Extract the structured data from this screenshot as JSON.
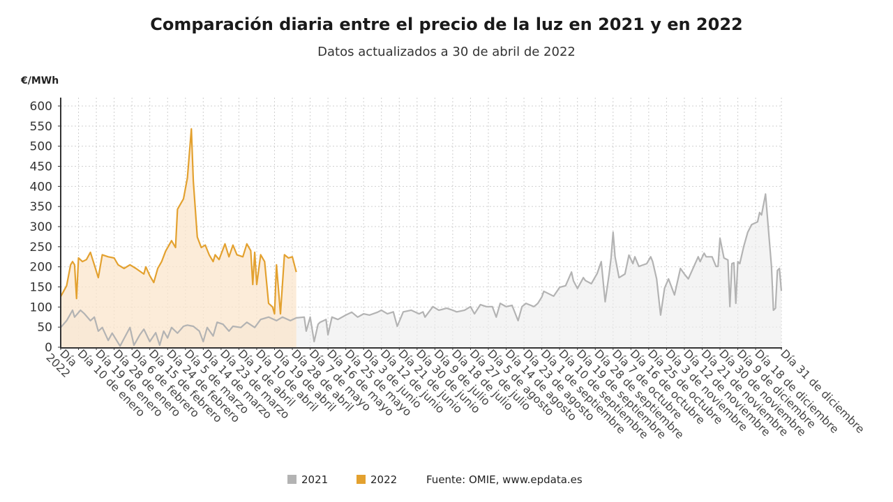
{
  "chart_data": {
    "type": "line",
    "title": "Comparación diaria entre el precio de la luz en 2021 y en 2022",
    "subtitle": "Datos actualizados a 30 de abril de 2022",
    "ylabel": "€/MWh",
    "xlabel": "",
    "ylim": [
      0,
      600
    ],
    "yticks": [
      0,
      50,
      100,
      150,
      200,
      250,
      300,
      350,
      400,
      450,
      500,
      550,
      600
    ],
    "grid": true,
    "legend_position": "bottom",
    "source": "Fuente: OMIE, www.epdata.es",
    "xticks": [
      {
        "date": "01-01",
        "label": "Día\n2022"
      },
      {
        "date": "01-10",
        "label": "Día 10 de enero"
      },
      {
        "date": "01-19",
        "label": "Día 19 de enero"
      },
      {
        "date": "01-28",
        "label": "Día 28 de enero"
      },
      {
        "date": "02-06",
        "label": "Día 6 de febrero"
      },
      {
        "date": "02-15",
        "label": "Día 15 de febrero"
      },
      {
        "date": "02-24",
        "label": "Día 24 de febrero"
      },
      {
        "date": "03-05",
        "label": "Día 5 de marzo"
      },
      {
        "date": "03-14",
        "label": "Día 14 de marzo"
      },
      {
        "date": "03-23",
        "label": "Día 23 de marzo"
      },
      {
        "date": "04-01",
        "label": "Día 1 de abril"
      },
      {
        "date": "04-10",
        "label": "Día 10 de abril"
      },
      {
        "date": "04-19",
        "label": "Día 19 de abril"
      },
      {
        "date": "04-28",
        "label": "Día 28 de abril"
      },
      {
        "date": "05-07",
        "label": "Día 7 de mayo"
      },
      {
        "date": "05-16",
        "label": "Día 16 de mayo"
      },
      {
        "date": "05-25",
        "label": "Día 25 de mayo"
      },
      {
        "date": "06-03",
        "label": "Día 3 de junio"
      },
      {
        "date": "06-12",
        "label": "Día 12 de junio"
      },
      {
        "date": "06-21",
        "label": "Día 21 de junio"
      },
      {
        "date": "06-30",
        "label": "Día 30 de junio"
      },
      {
        "date": "07-09",
        "label": "Día 9 de julio"
      },
      {
        "date": "07-18",
        "label": "Día 18 de julio"
      },
      {
        "date": "07-27",
        "label": "Día 27 de julio"
      },
      {
        "date": "08-05",
        "label": "Día 5 de agosto"
      },
      {
        "date": "08-14",
        "label": "Día 14 de agosto"
      },
      {
        "date": "08-23",
        "label": "Día 23 de agosto"
      },
      {
        "date": "09-01",
        "label": "Día 1 de septiembre"
      },
      {
        "date": "09-10",
        "label": "Día 10 de septiembre"
      },
      {
        "date": "09-19",
        "label": "Día 19 de septiembre"
      },
      {
        "date": "09-28",
        "label": "Día 28 de septiembre"
      },
      {
        "date": "10-07",
        "label": "Día 7 de octubre"
      },
      {
        "date": "10-16",
        "label": "Día 16 de octubre"
      },
      {
        "date": "10-25",
        "label": "Día 25 de octubre"
      },
      {
        "date": "11-03",
        "label": "Día 3 de noviembre"
      },
      {
        "date": "11-12",
        "label": "Día 12 de noviembre"
      },
      {
        "date": "11-21",
        "label": "Día 21 de noviembre"
      },
      {
        "date": "11-30",
        "label": "Día 30 de noviembre"
      },
      {
        "date": "12-09",
        "label": "Día 9 de diciembre"
      },
      {
        "date": "12-18",
        "label": "Día 18 de diciembre"
      },
      {
        "date": "12-31",
        "label": "Día 31 de diciembre"
      }
    ],
    "series": [
      {
        "name": "2021",
        "color": "#b3b3b3",
        "fill": "#ececec",
        "points": [
          [
            "01-01",
            49
          ],
          [
            "01-04",
            66
          ],
          [
            "01-07",
            92
          ],
          [
            "01-08",
            75
          ],
          [
            "01-11",
            92
          ],
          [
            "01-13",
            83
          ],
          [
            "01-16",
            66
          ],
          [
            "01-18",
            75
          ],
          [
            "01-20",
            40
          ],
          [
            "01-22",
            49
          ],
          [
            "01-25",
            17
          ],
          [
            "01-27",
            35
          ],
          [
            "01-31",
            3
          ],
          [
            "02-03",
            31
          ],
          [
            "02-05",
            49
          ],
          [
            "02-07",
            5
          ],
          [
            "02-10",
            31
          ],
          [
            "02-12",
            45
          ],
          [
            "02-15",
            14
          ],
          [
            "02-18",
            36
          ],
          [
            "02-20",
            5
          ],
          [
            "02-22",
            40
          ],
          [
            "02-24",
            23
          ],
          [
            "02-26",
            49
          ],
          [
            "03-01",
            35
          ],
          [
            "03-04",
            52
          ],
          [
            "03-06",
            55
          ],
          [
            "03-09",
            52
          ],
          [
            "03-12",
            40
          ],
          [
            "03-14",
            14
          ],
          [
            "03-16",
            49
          ],
          [
            "03-19",
            28
          ],
          [
            "03-21",
            62
          ],
          [
            "03-24",
            57
          ],
          [
            "03-27",
            40
          ],
          [
            "03-29",
            52
          ],
          [
            "04-02",
            49
          ],
          [
            "04-05",
            62
          ],
          [
            "04-09",
            49
          ],
          [
            "04-12",
            69
          ],
          [
            "04-16",
            75
          ],
          [
            "04-20",
            66
          ],
          [
            "04-23",
            75
          ],
          [
            "04-27",
            66
          ],
          [
            "04-30",
            73
          ],
          [
            "05-04",
            75
          ],
          [
            "05-05",
            40
          ],
          [
            "05-07",
            75
          ],
          [
            "05-09",
            14
          ],
          [
            "05-11",
            57
          ],
          [
            "05-12",
            62
          ],
          [
            "05-15",
            69
          ],
          [
            "05-16",
            31
          ],
          [
            "05-18",
            75
          ],
          [
            "05-21",
            69
          ],
          [
            "05-25",
            80
          ],
          [
            "05-28",
            87
          ],
          [
            "05-31",
            75
          ],
          [
            "06-03",
            83
          ],
          [
            "06-06",
            80
          ],
          [
            "06-10",
            87
          ],
          [
            "06-12",
            92
          ],
          [
            "06-15",
            83
          ],
          [
            "06-18",
            88
          ],
          [
            "06-20",
            52
          ],
          [
            "06-23",
            88
          ],
          [
            "06-27",
            92
          ],
          [
            "07-01",
            83
          ],
          [
            "07-03",
            88
          ],
          [
            "07-04",
            75
          ],
          [
            "07-08",
            101
          ],
          [
            "07-11",
            92
          ],
          [
            "07-15",
            97
          ],
          [
            "07-18",
            92
          ],
          [
            "07-20",
            88
          ],
          [
            "07-24",
            92
          ],
          [
            "07-27",
            101
          ],
          [
            "07-29",
            83
          ],
          [
            "08-01",
            106
          ],
          [
            "08-04",
            101
          ],
          [
            "08-07",
            101
          ],
          [
            "08-09",
            75
          ],
          [
            "08-11",
            109
          ],
          [
            "08-14",
            101
          ],
          [
            "08-17",
            104
          ],
          [
            "08-20",
            66
          ],
          [
            "08-22",
            101
          ],
          [
            "08-24",
            109
          ],
          [
            "08-28",
            101
          ],
          [
            "08-30",
            109
          ],
          [
            "09-01",
            125
          ],
          [
            "09-02",
            139
          ],
          [
            "09-07",
            127
          ],
          [
            "09-10",
            149
          ],
          [
            "09-13",
            153
          ],
          [
            "09-16",
            187
          ],
          [
            "09-17",
            165
          ],
          [
            "09-19",
            146
          ],
          [
            "09-22",
            173
          ],
          [
            "09-23",
            166
          ],
          [
            "09-26",
            158
          ],
          [
            "09-29",
            184
          ],
          [
            "10-01",
            213
          ],
          [
            "10-03",
            113
          ],
          [
            "10-05",
            182
          ],
          [
            "10-06",
            222
          ],
          [
            "10-07",
            286
          ],
          [
            "10-08",
            225
          ],
          [
            "10-10",
            173
          ],
          [
            "10-13",
            182
          ],
          [
            "10-15",
            229
          ],
          [
            "10-17",
            208
          ],
          [
            "10-18",
            225
          ],
          [
            "10-20",
            201
          ],
          [
            "10-24",
            208
          ],
          [
            "10-26",
            225
          ],
          [
            "10-27",
            213
          ],
          [
            "10-29",
            170
          ],
          [
            "10-31",
            80
          ],
          [
            "11-02",
            147
          ],
          [
            "11-04",
            170
          ],
          [
            "11-07",
            130
          ],
          [
            "11-10",
            196
          ],
          [
            "11-12",
            182
          ],
          [
            "11-14",
            170
          ],
          [
            "11-16",
            192
          ],
          [
            "11-19",
            225
          ],
          [
            "11-20",
            213
          ],
          [
            "11-22",
            234
          ],
          [
            "11-23",
            225
          ],
          [
            "11-26",
            225
          ],
          [
            "11-28",
            201
          ],
          [
            "11-29",
            201
          ],
          [
            "11-30",
            271
          ],
          [
            "12-02",
            222
          ],
          [
            "12-04",
            217
          ],
          [
            "12-05",
            101
          ],
          [
            "12-06",
            208
          ],
          [
            "12-07",
            210
          ],
          [
            "12-08",
            109
          ],
          [
            "12-09",
            213
          ],
          [
            "12-10",
            208
          ],
          [
            "12-12",
            251
          ],
          [
            "12-14",
            286
          ],
          [
            "12-16",
            305
          ],
          [
            "12-19",
            312
          ],
          [
            "12-20",
            335
          ],
          [
            "12-21",
            329
          ],
          [
            "12-23",
            381
          ],
          [
            "12-26",
            201
          ],
          [
            "12-27",
            92
          ],
          [
            "12-28",
            97
          ],
          [
            "12-29",
            191
          ],
          [
            "12-30",
            196
          ],
          [
            "12-31",
            140
          ]
        ]
      },
      {
        "name": "2022",
        "color": "#e3a12f",
        "fill": "#fbe6cc",
        "points": [
          [
            "01-01",
            126
          ],
          [
            "01-04",
            153
          ],
          [
            "01-06",
            205
          ],
          [
            "01-07",
            213
          ],
          [
            "01-08",
            205
          ],
          [
            "01-09",
            121
          ],
          [
            "01-10",
            222
          ],
          [
            "01-12",
            213
          ],
          [
            "01-14",
            218
          ],
          [
            "01-16",
            236
          ],
          [
            "01-18",
            205
          ],
          [
            "01-20",
            173
          ],
          [
            "01-22",
            230
          ],
          [
            "01-25",
            225
          ],
          [
            "01-28",
            222
          ],
          [
            "01-30",
            205
          ],
          [
            "02-02",
            196
          ],
          [
            "02-05",
            205
          ],
          [
            "02-08",
            196
          ],
          [
            "02-12",
            182
          ],
          [
            "02-13",
            200
          ],
          [
            "02-15",
            178
          ],
          [
            "02-17",
            161
          ],
          [
            "02-19",
            196
          ],
          [
            "02-21",
            213
          ],
          [
            "02-23",
            239
          ],
          [
            "02-26",
            265
          ],
          [
            "02-28",
            248
          ],
          [
            "03-01",
            343
          ],
          [
            "03-04",
            369
          ],
          [
            "03-06",
            421
          ],
          [
            "03-08",
            543
          ],
          [
            "03-09",
            413
          ],
          [
            "03-11",
            274
          ],
          [
            "03-13",
            248
          ],
          [
            "03-15",
            254
          ],
          [
            "03-17",
            230
          ],
          [
            "03-19",
            213
          ],
          [
            "03-20",
            230
          ],
          [
            "03-22",
            218
          ],
          [
            "03-25",
            257
          ],
          [
            "03-27",
            225
          ],
          [
            "03-29",
            254
          ],
          [
            "03-31",
            230
          ],
          [
            "04-03",
            225
          ],
          [
            "04-05",
            257
          ],
          [
            "04-07",
            240
          ],
          [
            "04-08",
            156
          ],
          [
            "04-09",
            236
          ],
          [
            "04-10",
            156
          ],
          [
            "04-12",
            230
          ],
          [
            "04-14",
            213
          ],
          [
            "04-16",
            109
          ],
          [
            "04-18",
            100
          ],
          [
            "04-19",
            83
          ],
          [
            "04-20",
            205
          ],
          [
            "04-22",
            83
          ],
          [
            "04-24",
            230
          ],
          [
            "04-26",
            222
          ],
          [
            "04-28",
            225
          ],
          [
            "04-30",
            187
          ]
        ]
      }
    ]
  }
}
